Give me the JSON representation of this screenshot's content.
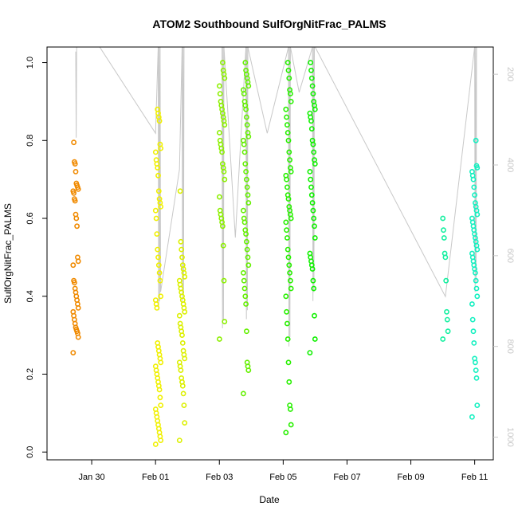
{
  "chart_data": {
    "type": "scatter",
    "title": "ATOM2 Southbound SulfOrgNitFrac_PALMS",
    "xlabel": "Date",
    "ylabel": "SulfOrgNitFrac_PALMS",
    "xlim": [
      "2017-01-28T14:24",
      "2017-02-11T14:00"
    ],
    "ylim": [
      -0.02,
      1.04
    ],
    "x_ticks": [
      {
        "date": "2017-01-30",
        "label": "Jan 30"
      },
      {
        "date": "2017-02-01",
        "label": "Feb 01"
      },
      {
        "date": "2017-02-03",
        "label": "Feb 03"
      },
      {
        "date": "2017-02-05",
        "label": "Feb 05"
      },
      {
        "date": "2017-02-07",
        "label": "Feb 07"
      },
      {
        "date": "2017-02-09",
        "label": "Feb 09"
      },
      {
        "date": "2017-02-11",
        "label": "Feb 11"
      }
    ],
    "y_ticks": [
      0.0,
      0.2,
      0.4,
      0.6,
      0.8,
      1.0
    ],
    "y_tick_labels": [
      "0.0",
      "0.2",
      "0.4",
      "0.6",
      "0.8",
      "1.0"
    ],
    "y2_label": "",
    "y2_lim": [
      1050,
      140
    ],
    "y2_ticks": [
      200,
      400,
      600,
      800,
      1000
    ],
    "y2_tick_labels": [
      "200",
      "400",
      "600",
      "800",
      "1000"
    ],
    "grid": false,
    "legend": "none",
    "secondary_color": "#c8c8c8",
    "series": [
      {
        "color": "#f08a00",
        "x": "2017-01-29T12:00",
        "values": [
          0.255,
          0.295,
          0.305,
          0.31,
          0.315,
          0.32,
          0.33,
          0.34,
          0.35,
          0.36,
          0.37,
          0.38,
          0.39,
          0.4,
          0.41,
          0.42,
          0.435,
          0.44,
          0.48,
          0.49,
          0.5,
          0.58,
          0.6,
          0.61,
          0.645,
          0.65,
          0.665,
          0.67,
          0.675,
          0.68,
          0.685,
          0.69,
          0.72,
          0.74,
          0.745,
          0.795
        ]
      },
      {
        "color": "#f0f000",
        "x": "2017-02-01T02:00",
        "values": [
          0.02,
          0.03,
          0.04,
          0.05,
          0.06,
          0.07,
          0.08,
          0.09,
          0.1,
          0.11,
          0.12,
          0.14,
          0.16,
          0.17,
          0.18,
          0.19,
          0.2,
          0.21,
          0.22,
          0.23,
          0.24,
          0.25,
          0.26,
          0.27,
          0.28,
          0.37,
          0.38,
          0.39,
          0.4,
          0.44,
          0.46,
          0.48,
          0.5,
          0.52,
          0.56,
          0.6,
          0.62,
          0.63,
          0.64,
          0.65,
          0.67,
          0.71,
          0.73,
          0.74,
          0.75,
          0.77,
          0.78,
          0.79,
          0.85,
          0.86,
          0.87,
          0.88
        ]
      },
      {
        "color": "#dcf000",
        "x": "2017-02-01T20:00",
        "values": [
          0.03,
          0.075,
          0.12,
          0.15,
          0.17,
          0.18,
          0.19,
          0.21,
          0.22,
          0.23,
          0.24,
          0.25,
          0.26,
          0.28,
          0.3,
          0.31,
          0.32,
          0.33,
          0.35,
          0.36,
          0.37,
          0.38,
          0.39,
          0.4,
          0.41,
          0.42,
          0.43,
          0.44,
          0.45,
          0.46,
          0.47,
          0.48,
          0.5,
          0.52,
          0.54,
          0.67
        ]
      },
      {
        "color": "#8cf000",
        "x": "2017-02-03T02:00",
        "values": [
          0.29,
          0.335,
          0.44,
          0.53,
          0.58,
          0.59,
          0.6,
          0.61,
          0.62,
          0.655,
          0.7,
          0.72,
          0.73,
          0.74,
          0.77,
          0.78,
          0.79,
          0.8,
          0.82,
          0.84,
          0.85,
          0.86,
          0.87,
          0.88,
          0.89,
          0.9,
          0.92,
          0.94,
          0.96,
          0.97,
          0.98,
          1.0
        ]
      },
      {
        "color": "#64f000",
        "x": "2017-02-03T20:00",
        "values": [
          0.15,
          0.21,
          0.22,
          0.23,
          0.31,
          0.38,
          0.4,
          0.42,
          0.44,
          0.46,
          0.48,
          0.5,
          0.52,
          0.54,
          0.56,
          0.57,
          0.59,
          0.6,
          0.62,
          0.64,
          0.66,
          0.68,
          0.7,
          0.72,
          0.74,
          0.77,
          0.79,
          0.8,
          0.81,
          0.82,
          0.84,
          0.86,
          0.88,
          0.89,
          0.9,
          0.92,
          0.93,
          0.94,
          0.95,
          0.96,
          0.97,
          0.98,
          1.0
        ]
      },
      {
        "color": "#28f000",
        "x": "2017-02-05T04:00",
        "values": [
          0.05,
          0.07,
          0.11,
          0.12,
          0.18,
          0.23,
          0.29,
          0.33,
          0.36,
          0.4,
          0.42,
          0.44,
          0.46,
          0.48,
          0.5,
          0.52,
          0.55,
          0.57,
          0.59,
          0.6,
          0.61,
          0.62,
          0.63,
          0.65,
          0.66,
          0.68,
          0.7,
          0.71,
          0.72,
          0.73,
          0.75,
          0.77,
          0.8,
          0.82,
          0.84,
          0.86,
          0.88,
          0.9,
          0.92,
          0.93,
          0.96,
          0.98,
          1.0
        ]
      },
      {
        "color": "#10f000",
        "x": "2017-02-05T22:00",
        "values": [
          0.255,
          0.29,
          0.35,
          0.42,
          0.44,
          0.47,
          0.48,
          0.49,
          0.5,
          0.51,
          0.55,
          0.58,
          0.6,
          0.62,
          0.64,
          0.66,
          0.68,
          0.7,
          0.72,
          0.74,
          0.75,
          0.77,
          0.79,
          0.8,
          0.83,
          0.85,
          0.86,
          0.87,
          0.88,
          0.89,
          0.9,
          0.92,
          0.94,
          0.96,
          0.98,
          1.0
        ]
      },
      {
        "color": "#14f0a0",
        "x": "2017-02-10T02:00",
        "values": [
          0.29,
          0.31,
          0.34,
          0.36,
          0.44,
          0.5,
          0.51,
          0.55,
          0.57,
          0.6
        ]
      },
      {
        "color": "#14f0c0",
        "x": "2017-02-11T00:00",
        "values": [
          0.09,
          0.12,
          0.19,
          0.21,
          0.23,
          0.24,
          0.28,
          0.31,
          0.34,
          0.38,
          0.4,
          0.42,
          0.44,
          0.46,
          0.47,
          0.48,
          0.49,
          0.5,
          0.51,
          0.52,
          0.53,
          0.54,
          0.55,
          0.56,
          0.57,
          0.58,
          0.59,
          0.6,
          0.61,
          0.62,
          0.63,
          0.64,
          0.66,
          0.68,
          0.7,
          0.71,
          0.72,
          0.73,
          0.735,
          0.8
        ]
      }
    ],
    "altitude_profile": [
      {
        "x": "2017-01-29T12:00",
        "y2": [
          150,
          340,
          140
        ]
      },
      {
        "x": "2017-01-30T06:00",
        "y2": [
          140
        ]
      },
      {
        "x": "2017-02-01T00:00",
        "y2": [
          330
        ]
      },
      {
        "x": "2017-02-01T02:00",
        "y2": [
          140,
          720,
          140,
          700,
          140,
          680
        ]
      },
      {
        "x": "2017-02-01T18:00",
        "y2": [
          410
        ]
      },
      {
        "x": "2017-02-01T20:00",
        "y2": [
          140,
          700,
          140,
          680,
          140
        ]
      },
      {
        "x": "2017-02-02T00:00",
        "y2": [
          140
        ]
      },
      {
        "x": "2017-02-03T02:00",
        "y2": [
          140,
          760,
          140,
          740,
          140
        ]
      },
      {
        "x": "2017-02-03T12:00",
        "y2": [
          560
        ]
      },
      {
        "x": "2017-02-03T20:00",
        "y2": [
          140,
          740,
          140,
          720,
          140
        ]
      },
      {
        "x": "2017-02-04T12:00",
        "y2": [
          330
        ]
      },
      {
        "x": "2017-02-05T04:00",
        "y2": [
          140,
          800,
          140,
          780,
          140
        ]
      },
      {
        "x": "2017-02-05T12:00",
        "y2": [
          240
        ]
      },
      {
        "x": "2017-02-05T22:00",
        "y2": [
          140,
          700,
          140,
          680,
          140
        ]
      },
      {
        "x": "2017-02-06T00:00",
        "y2": [
          140
        ]
      },
      {
        "x": "2017-02-10T02:00",
        "y2": [
          690
        ]
      },
      {
        "x": "2017-02-11T00:00",
        "y2": [
          140,
          680,
          140,
          660,
          140
        ]
      }
    ]
  }
}
